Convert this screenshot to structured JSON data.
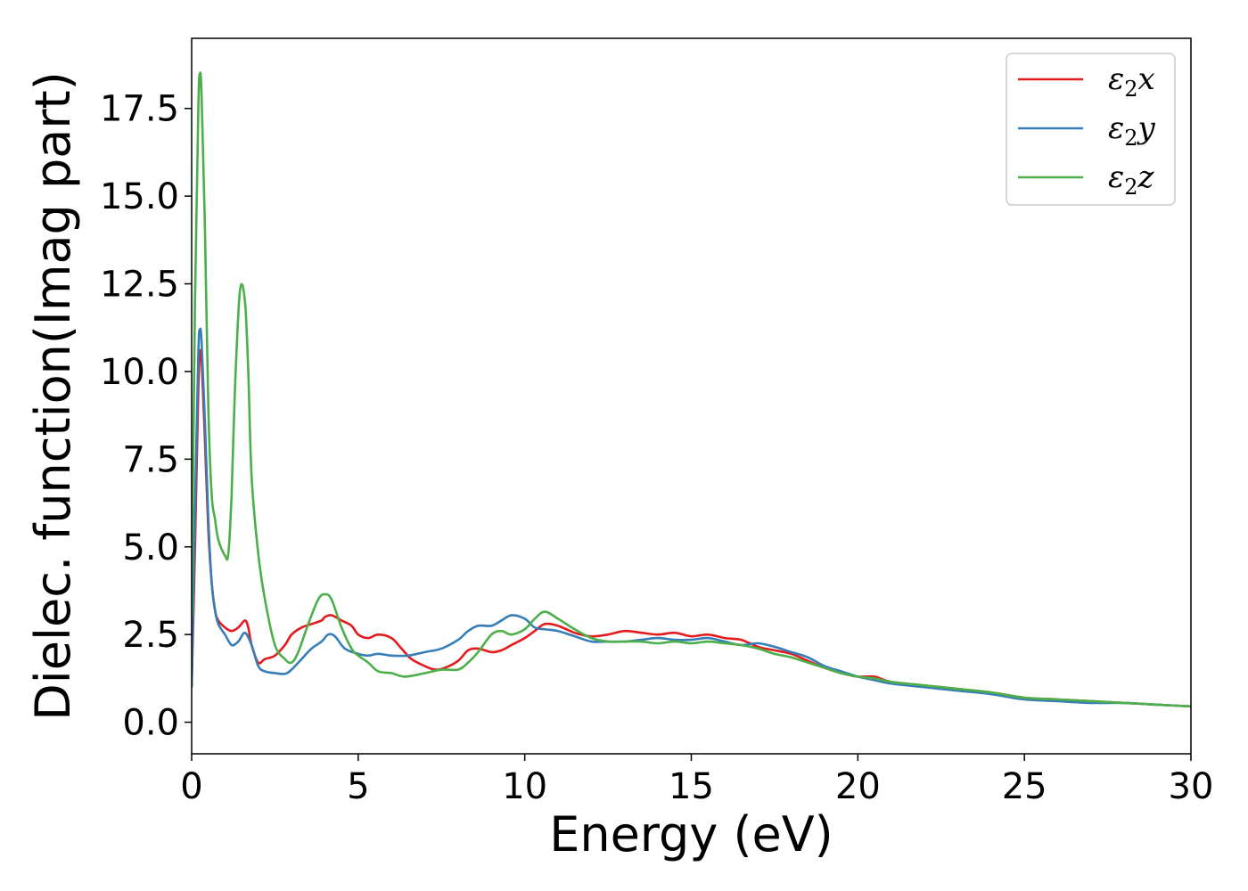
{
  "chart_data": {
    "type": "line",
    "xlabel": "Energy (eV)",
    "ylabel": "Dielec. function(Imag part)",
    "xlim": [
      0,
      30
    ],
    "ylim": [
      -0.9,
      19.5
    ],
    "xticks": [
      0,
      5,
      10,
      15,
      20,
      25,
      30
    ],
    "xtick_labels": [
      "0",
      "5",
      "10",
      "15",
      "20",
      "25",
      "30"
    ],
    "yticks": [
      0,
      2.5,
      5,
      7.5,
      10,
      12.5,
      15,
      17.5
    ],
    "ytick_labels": [
      "0.0",
      "2.5",
      "5.0",
      "7.5",
      "10.0",
      "12.5",
      "15.0",
      "17.5"
    ],
    "grid": false,
    "legend_position": "top-right",
    "series": [
      {
        "name": "ε2x",
        "legend_base": "ε",
        "legend_sub": "2",
        "legend_var": "x",
        "color": "#e41a1c",
        "x": [
          0,
          0.1,
          0.2,
          0.25,
          0.3,
          0.4,
          0.5,
          0.6,
          0.7,
          0.8,
          1.0,
          1.2,
          1.4,
          1.6,
          1.7,
          1.8,
          2.0,
          2.2,
          2.5,
          2.8,
          3.0,
          3.3,
          3.6,
          3.9,
          4.0,
          4.2,
          4.5,
          4.8,
          5.0,
          5.3,
          5.6,
          6.0,
          6.3,
          6.6,
          7.0,
          7.3,
          7.6,
          8.0,
          8.3,
          8.6,
          9.0,
          9.3,
          9.6,
          10.0,
          10.3,
          10.6,
          11.0,
          11.5,
          12.0,
          12.5,
          13.0,
          13.5,
          14.0,
          14.5,
          15.0,
          15.5,
          16.0,
          16.5,
          17.0,
          17.5,
          18.0,
          18.5,
          19.0,
          19.5,
          20.0,
          20.5,
          21.0,
          22.0,
          23.0,
          24.0,
          25.0,
          26.0,
          27.0,
          28.0,
          29.0,
          30.0
        ],
        "values": [
          1.0,
          5.0,
          9.5,
          10.5,
          10.3,
          8.0,
          5.5,
          4.0,
          3.2,
          2.9,
          2.7,
          2.6,
          2.7,
          2.9,
          2.7,
          2.2,
          1.7,
          1.8,
          1.9,
          2.2,
          2.5,
          2.7,
          2.8,
          2.9,
          3.0,
          3.05,
          2.9,
          2.75,
          2.5,
          2.4,
          2.5,
          2.4,
          2.1,
          1.8,
          1.6,
          1.5,
          1.55,
          1.75,
          2.05,
          2.1,
          2.0,
          2.05,
          2.2,
          2.4,
          2.6,
          2.8,
          2.75,
          2.55,
          2.45,
          2.5,
          2.6,
          2.55,
          2.5,
          2.55,
          2.45,
          2.5,
          2.4,
          2.35,
          2.15,
          2.05,
          1.95,
          1.75,
          1.55,
          1.4,
          1.3,
          1.3,
          1.15,
          1.05,
          0.95,
          0.85,
          0.7,
          0.65,
          0.6,
          0.55,
          0.5,
          0.45
        ]
      },
      {
        "name": "ε2y",
        "legend_base": "ε",
        "legend_sub": "2",
        "legend_var": "y",
        "color": "#377eb8",
        "x": [
          0,
          0.1,
          0.2,
          0.25,
          0.3,
          0.4,
          0.5,
          0.6,
          0.7,
          0.8,
          1.0,
          1.2,
          1.4,
          1.6,
          1.8,
          2.0,
          2.2,
          2.5,
          2.8,
          3.0,
          3.3,
          3.6,
          3.9,
          4.1,
          4.3,
          4.6,
          5.0,
          5.3,
          5.6,
          6.0,
          6.5,
          7.0,
          7.5,
          8.0,
          8.3,
          8.6,
          9.0,
          9.3,
          9.6,
          10.0,
          10.3,
          10.6,
          11.0,
          11.5,
          12.0,
          12.5,
          13.0,
          13.5,
          14.0,
          14.5,
          15.0,
          15.5,
          16.0,
          16.5,
          17.0,
          17.5,
          18.0,
          18.5,
          19.0,
          19.5,
          20.0,
          20.5,
          21.0,
          22.0,
          23.0,
          24.0,
          25.0,
          26.0,
          27.0,
          28.0,
          29.0,
          30.0
        ],
        "values": [
          1.0,
          6.0,
          10.5,
          11.2,
          10.8,
          8.5,
          5.8,
          4.0,
          3.2,
          2.8,
          2.5,
          2.2,
          2.3,
          2.55,
          2.2,
          1.6,
          1.45,
          1.4,
          1.38,
          1.5,
          1.8,
          2.1,
          2.3,
          2.5,
          2.45,
          2.1,
          1.95,
          1.9,
          1.95,
          1.9,
          1.9,
          2.0,
          2.1,
          2.35,
          2.6,
          2.75,
          2.75,
          2.9,
          3.05,
          2.95,
          2.7,
          2.65,
          2.6,
          2.45,
          2.3,
          2.3,
          2.3,
          2.35,
          2.4,
          2.35,
          2.35,
          2.4,
          2.3,
          2.2,
          2.25,
          2.15,
          2.0,
          1.85,
          1.6,
          1.45,
          1.3,
          1.2,
          1.1,
          1.0,
          0.9,
          0.8,
          0.65,
          0.6,
          0.55,
          0.55,
          0.5,
          0.45
        ]
      },
      {
        "name": "ε2z",
        "legend_base": "ε",
        "legend_sub": "2",
        "legend_var": "z",
        "color": "#4daf4a",
        "x": [
          0,
          0.1,
          0.2,
          0.25,
          0.3,
          0.4,
          0.5,
          0.6,
          0.7,
          0.8,
          1.0,
          1.1,
          1.2,
          1.3,
          1.45,
          1.6,
          1.7,
          1.8,
          2.0,
          2.2,
          2.5,
          2.8,
          3.0,
          3.2,
          3.5,
          3.8,
          4.0,
          4.2,
          4.5,
          4.8,
          5.0,
          5.3,
          5.6,
          6.0,
          6.4,
          7.0,
          7.5,
          8.0,
          8.3,
          8.6,
          9.0,
          9.3,
          9.6,
          10.0,
          10.3,
          10.6,
          11.0,
          11.5,
          12.0,
          12.5,
          13.0,
          13.5,
          14.0,
          14.5,
          15.0,
          15.5,
          16.0,
          16.5,
          17.0,
          17.5,
          18.0,
          18.5,
          19.0,
          19.5,
          20.0,
          20.5,
          21.0,
          22.0,
          23.0,
          24.0,
          25.0,
          26.0,
          27.0,
          28.0,
          29.0,
          30.0
        ],
        "values": [
          3.0,
          12.0,
          17.5,
          18.5,
          17.8,
          14.0,
          9.0,
          6.5,
          5.8,
          5.2,
          4.75,
          4.8,
          6.5,
          9.5,
          12.3,
          12.0,
          10.0,
          7.0,
          4.8,
          3.5,
          2.2,
          1.8,
          1.7,
          2.0,
          2.8,
          3.5,
          3.65,
          3.5,
          2.7,
          2.1,
          1.9,
          1.7,
          1.45,
          1.4,
          1.3,
          1.4,
          1.5,
          1.5,
          1.7,
          2.0,
          2.5,
          2.6,
          2.5,
          2.65,
          2.95,
          3.15,
          2.95,
          2.65,
          2.4,
          2.3,
          2.3,
          2.3,
          2.25,
          2.3,
          2.25,
          2.3,
          2.25,
          2.2,
          2.1,
          1.95,
          1.85,
          1.7,
          1.55,
          1.4,
          1.3,
          1.25,
          1.15,
          1.05,
          0.95,
          0.85,
          0.7,
          0.65,
          0.6,
          0.55,
          0.5,
          0.45
        ]
      }
    ]
  }
}
